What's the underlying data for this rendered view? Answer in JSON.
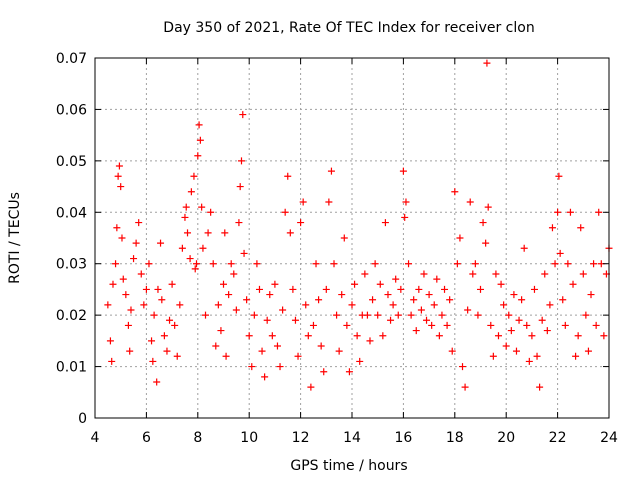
{
  "chart_data": {
    "type": "scatter",
    "title": "Day 350 of 2021, Rate Of TEC Index for receiver clon",
    "xlabel": "GPS time / hours",
    "ylabel": "ROTI / TECUs",
    "xlim": [
      4,
      24
    ],
    "ylim": [
      0,
      0.07
    ],
    "x_ticks": [
      4,
      6,
      8,
      10,
      12,
      14,
      16,
      18,
      20,
      22,
      24
    ],
    "y_ticks": [
      0,
      0.01,
      0.02,
      0.03,
      0.04,
      0.05,
      0.06,
      0.07
    ],
    "x_tick_labels": [
      "4",
      "6",
      "8",
      "10",
      "12",
      "14",
      "16",
      "18",
      "20",
      "22",
      "24"
    ],
    "y_tick_labels": [
      "0",
      "0.01",
      "0.02",
      "0.03",
      "0.04",
      "0.05",
      "0.06",
      "0.07"
    ],
    "grid": true,
    "marker": "+",
    "colors": {
      "series": "#ff0000",
      "grid": "#a0a0a0",
      "axis": "#000000"
    },
    "series": [
      {
        "points": [
          [
            4.5,
            0.022
          ],
          [
            4.6,
            0.015
          ],
          [
            4.65,
            0.011
          ],
          [
            4.7,
            0.026
          ],
          [
            4.8,
            0.03
          ],
          [
            4.85,
            0.037
          ],
          [
            4.9,
            0.047
          ],
          [
            4.95,
            0.049
          ],
          [
            5.0,
            0.045
          ],
          [
            5.05,
            0.035
          ],
          [
            5.1,
            0.027
          ],
          [
            5.2,
            0.024
          ],
          [
            5.3,
            0.018
          ],
          [
            5.35,
            0.013
          ],
          [
            5.4,
            0.021
          ],
          [
            5.5,
            0.031
          ],
          [
            5.6,
            0.034
          ],
          [
            5.7,
            0.038
          ],
          [
            5.8,
            0.028
          ],
          [
            5.9,
            0.022
          ],
          [
            6.0,
            0.025
          ],
          [
            6.1,
            0.03
          ],
          [
            6.2,
            0.015
          ],
          [
            6.25,
            0.011
          ],
          [
            6.3,
            0.02
          ],
          [
            6.4,
            0.007
          ],
          [
            6.45,
            0.025
          ],
          [
            6.55,
            0.034
          ],
          [
            6.6,
            0.023
          ],
          [
            6.7,
            0.016
          ],
          [
            6.8,
            0.013
          ],
          [
            6.9,
            0.019
          ],
          [
            7.0,
            0.026
          ],
          [
            7.1,
            0.018
          ],
          [
            7.2,
            0.012
          ],
          [
            7.3,
            0.022
          ],
          [
            7.4,
            0.033
          ],
          [
            7.5,
            0.039
          ],
          [
            7.55,
            0.041
          ],
          [
            7.6,
            0.036
          ],
          [
            7.7,
            0.031
          ],
          [
            7.75,
            0.044
          ],
          [
            7.85,
            0.047
          ],
          [
            7.9,
            0.029
          ],
          [
            7.95,
            0.03
          ],
          [
            8.0,
            0.051
          ],
          [
            8.05,
            0.057
          ],
          [
            8.1,
            0.054
          ],
          [
            8.15,
            0.041
          ],
          [
            8.2,
            0.033
          ],
          [
            8.3,
            0.02
          ],
          [
            8.4,
            0.036
          ],
          [
            8.5,
            0.04
          ],
          [
            8.6,
            0.03
          ],
          [
            8.7,
            0.014
          ],
          [
            8.8,
            0.022
          ],
          [
            8.9,
            0.017
          ],
          [
            9.0,
            0.026
          ],
          [
            9.05,
            0.036
          ],
          [
            9.1,
            0.012
          ],
          [
            9.2,
            0.024
          ],
          [
            9.3,
            0.03
          ],
          [
            9.4,
            0.028
          ],
          [
            9.5,
            0.021
          ],
          [
            9.6,
            0.038
          ],
          [
            9.65,
            0.045
          ],
          [
            9.7,
            0.05
          ],
          [
            9.75,
            0.059
          ],
          [
            9.8,
            0.032
          ],
          [
            9.9,
            0.023
          ],
          [
            10.0,
            0.016
          ],
          [
            10.1,
            0.01
          ],
          [
            10.2,
            0.02
          ],
          [
            10.3,
            0.03
          ],
          [
            10.4,
            0.025
          ],
          [
            10.5,
            0.013
          ],
          [
            10.6,
            0.008
          ],
          [
            10.7,
            0.019
          ],
          [
            10.8,
            0.024
          ],
          [
            10.9,
            0.016
          ],
          [
            11.0,
            0.026
          ],
          [
            11.1,
            0.014
          ],
          [
            11.2,
            0.01
          ],
          [
            11.3,
            0.021
          ],
          [
            11.4,
            0.04
          ],
          [
            11.5,
            0.047
          ],
          [
            11.6,
            0.036
          ],
          [
            11.7,
            0.025
          ],
          [
            11.8,
            0.019
          ],
          [
            11.9,
            0.012
          ],
          [
            12.0,
            0.038
          ],
          [
            12.1,
            0.042
          ],
          [
            12.2,
            0.022
          ],
          [
            12.3,
            0.016
          ],
          [
            12.4,
            0.006
          ],
          [
            12.5,
            0.018
          ],
          [
            12.6,
            0.03
          ],
          [
            12.7,
            0.023
          ],
          [
            12.8,
            0.014
          ],
          [
            12.9,
            0.009
          ],
          [
            13.0,
            0.025
          ],
          [
            13.1,
            0.042
          ],
          [
            13.2,
            0.048
          ],
          [
            13.3,
            0.03
          ],
          [
            13.4,
            0.02
          ],
          [
            13.5,
            0.013
          ],
          [
            13.6,
            0.024
          ],
          [
            13.7,
            0.035
          ],
          [
            13.8,
            0.018
          ],
          [
            13.9,
            0.009
          ],
          [
            14.0,
            0.022
          ],
          [
            14.1,
            0.026
          ],
          [
            14.2,
            0.016
          ],
          [
            14.3,
            0.011
          ],
          [
            14.4,
            0.02
          ],
          [
            14.5,
            0.028
          ],
          [
            14.6,
            0.02
          ],
          [
            14.7,
            0.015
          ],
          [
            14.8,
            0.023
          ],
          [
            14.9,
            0.03
          ],
          [
            15.0,
            0.02
          ],
          [
            15.1,
            0.026
          ],
          [
            15.2,
            0.016
          ],
          [
            15.3,
            0.038
          ],
          [
            15.4,
            0.024
          ],
          [
            15.5,
            0.019
          ],
          [
            15.6,
            0.022
          ],
          [
            15.7,
            0.027
          ],
          [
            15.8,
            0.02
          ],
          [
            15.9,
            0.025
          ],
          [
            16.0,
            0.048
          ],
          [
            16.05,
            0.039
          ],
          [
            16.1,
            0.042
          ],
          [
            16.2,
            0.03
          ],
          [
            16.3,
            0.02
          ],
          [
            16.4,
            0.023
          ],
          [
            16.5,
            0.017
          ],
          [
            16.6,
            0.025
          ],
          [
            16.7,
            0.021
          ],
          [
            16.8,
            0.028
          ],
          [
            16.9,
            0.019
          ],
          [
            17.0,
            0.024
          ],
          [
            17.1,
            0.018
          ],
          [
            17.2,
            0.022
          ],
          [
            17.3,
            0.027
          ],
          [
            17.4,
            0.016
          ],
          [
            17.5,
            0.02
          ],
          [
            17.6,
            0.025
          ],
          [
            17.7,
            0.018
          ],
          [
            17.8,
            0.023
          ],
          [
            17.9,
            0.013
          ],
          [
            18.0,
            0.044
          ],
          [
            18.1,
            0.03
          ],
          [
            18.2,
            0.035
          ],
          [
            18.3,
            0.01
          ],
          [
            18.4,
            0.006
          ],
          [
            18.5,
            0.021
          ],
          [
            18.6,
            0.042
          ],
          [
            18.7,
            0.028
          ],
          [
            18.8,
            0.03
          ],
          [
            18.9,
            0.02
          ],
          [
            19.0,
            0.025
          ],
          [
            19.1,
            0.038
          ],
          [
            19.2,
            0.034
          ],
          [
            19.25,
            0.069
          ],
          [
            19.3,
            0.041
          ],
          [
            19.4,
            0.018
          ],
          [
            19.5,
            0.012
          ],
          [
            19.6,
            0.028
          ],
          [
            19.7,
            0.016
          ],
          [
            19.8,
            0.026
          ],
          [
            19.9,
            0.022
          ],
          [
            20.0,
            0.014
          ],
          [
            20.1,
            0.02
          ],
          [
            20.2,
            0.017
          ],
          [
            20.3,
            0.024
          ],
          [
            20.4,
            0.013
          ],
          [
            20.5,
            0.019
          ],
          [
            20.6,
            0.023
          ],
          [
            20.7,
            0.033
          ],
          [
            20.8,
            0.018
          ],
          [
            20.9,
            0.011
          ],
          [
            21.0,
            0.016
          ],
          [
            21.1,
            0.025
          ],
          [
            21.2,
            0.012
          ],
          [
            21.3,
            0.006
          ],
          [
            21.4,
            0.019
          ],
          [
            21.5,
            0.028
          ],
          [
            21.6,
            0.017
          ],
          [
            21.7,
            0.022
          ],
          [
            21.8,
            0.037
          ],
          [
            21.9,
            0.03
          ],
          [
            22.0,
            0.04
          ],
          [
            22.05,
            0.047
          ],
          [
            22.1,
            0.032
          ],
          [
            22.2,
            0.023
          ],
          [
            22.3,
            0.018
          ],
          [
            22.4,
            0.03
          ],
          [
            22.5,
            0.04
          ],
          [
            22.6,
            0.026
          ],
          [
            22.7,
            0.012
          ],
          [
            22.8,
            0.016
          ],
          [
            22.9,
            0.037
          ],
          [
            23.0,
            0.028
          ],
          [
            23.1,
            0.02
          ],
          [
            23.2,
            0.013
          ],
          [
            23.3,
            0.024
          ],
          [
            23.4,
            0.03
          ],
          [
            23.5,
            0.018
          ],
          [
            23.6,
            0.04
          ],
          [
            23.7,
            0.03
          ],
          [
            23.8,
            0.016
          ],
          [
            23.9,
            0.028
          ],
          [
            24.0,
            0.033
          ]
        ]
      }
    ]
  }
}
